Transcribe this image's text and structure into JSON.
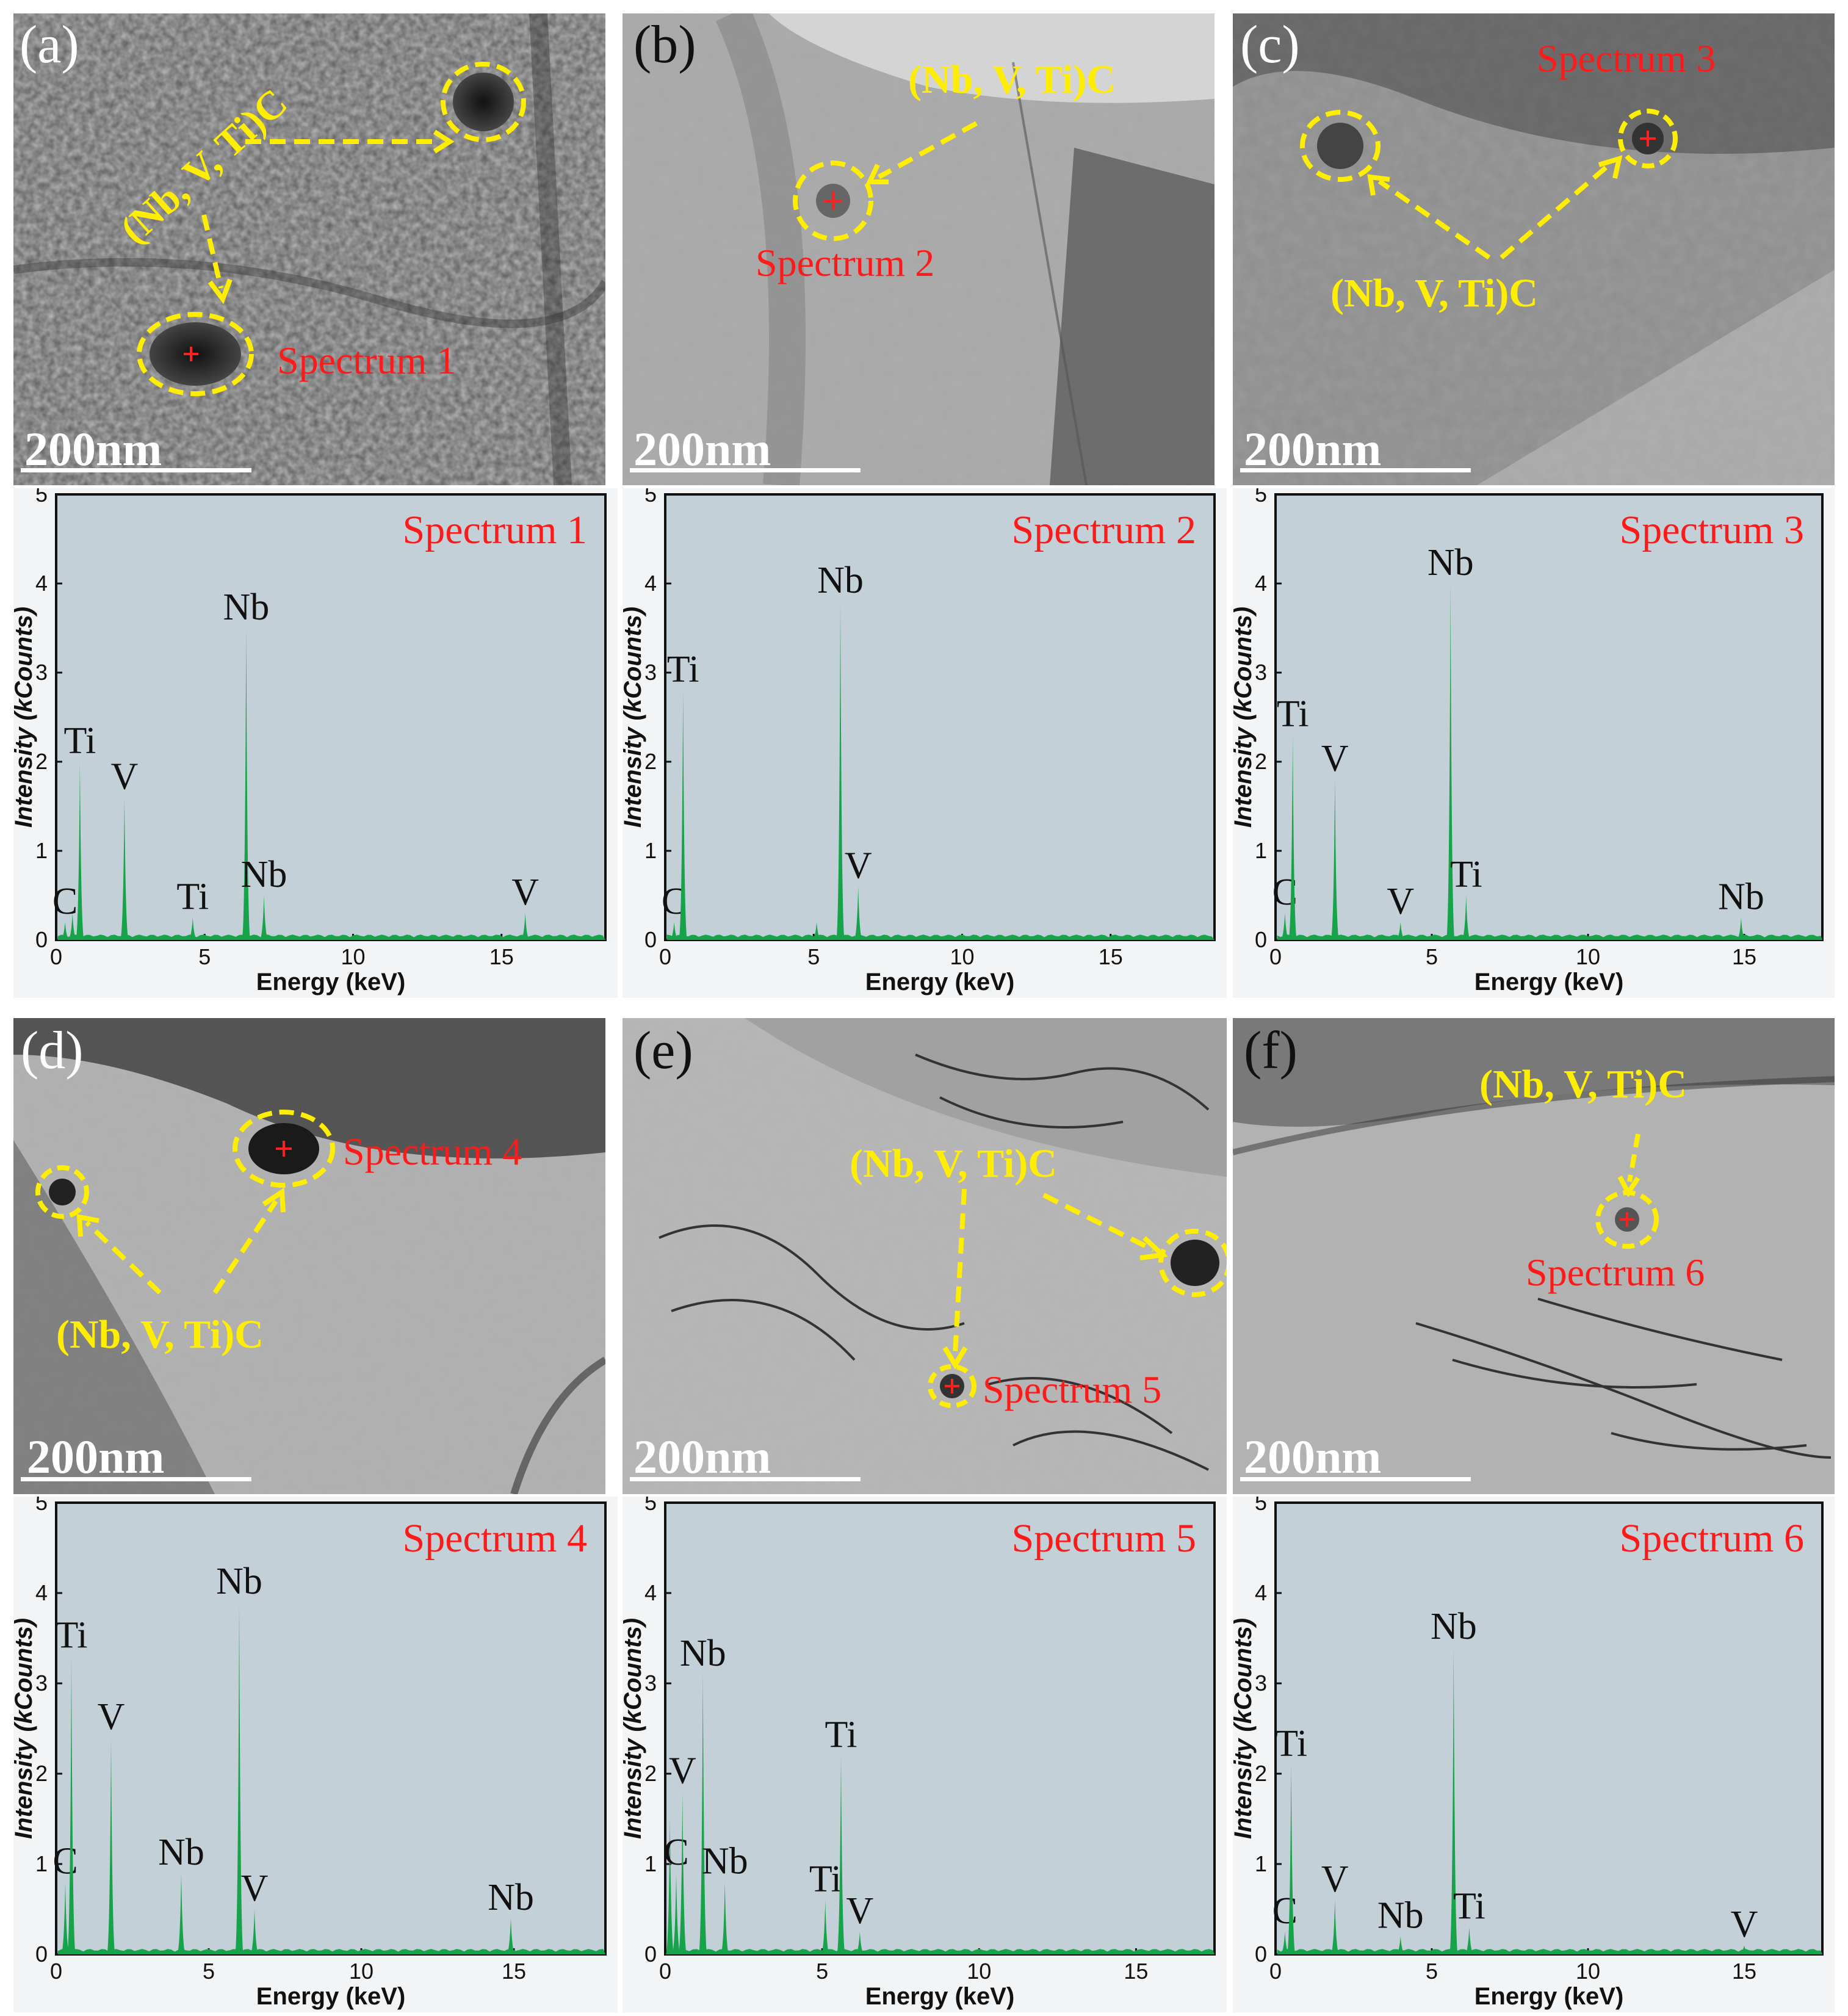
{
  "figure": {
    "panels": [
      {
        "label": "(a)",
        "scale_bar": "200nm",
        "spectrum_label": "Spectrum 1",
        "precipitate_label": "(Nb, V, Ti)C",
        "tone": "dark"
      },
      {
        "label": "(b)",
        "scale_bar": "200nm",
        "spectrum_label": "Spectrum 2",
        "precipitate_label": "(Nb, V, Ti)C",
        "tone": "light"
      },
      {
        "label": "(c)",
        "scale_bar": "200nm",
        "spectrum_label": "Spectrum 3",
        "precipitate_label": "(Nb, V, Ti)C",
        "tone": "mid"
      },
      {
        "label": "(d)",
        "scale_bar": "200nm",
        "spectrum_label": "Spectrum 4",
        "precipitate_label": "(Nb, V, Ti)C",
        "tone": "mid"
      },
      {
        "label": "(e)",
        "scale_bar": "200nm",
        "spectrum_label": "Spectrum 5",
        "precipitate_label": "(Nb, V, Ti)C",
        "tone": "light"
      },
      {
        "label": "(f)",
        "scale_bar": "200nm",
        "spectrum_label": "Spectrum 6",
        "precipitate_label": "(Nb, V, Ti)C",
        "tone": "light"
      }
    ]
  },
  "chart_data": [
    {
      "type": "line",
      "title": "Spectrum 1",
      "xlabel": "Energy (keV)",
      "ylabel": "Intensity (kCounts)",
      "xlim": [
        0,
        18.5
      ],
      "ylim": [
        0,
        5
      ],
      "xticks": [
        0,
        5,
        10,
        15
      ],
      "yticks": [
        0,
        1,
        2,
        3,
        4,
        5
      ],
      "peaks": [
        {
          "x": 0.3,
          "y": 0.2,
          "label": "C"
        },
        {
          "x": 0.55,
          "y": 0.3,
          "label": ""
        },
        {
          "x": 0.8,
          "y": 2.0,
          "label": "Ti"
        },
        {
          "x": 2.3,
          "y": 1.6,
          "label": "V"
        },
        {
          "x": 4.6,
          "y": 0.25,
          "label": "Ti"
        },
        {
          "x": 6.4,
          "y": 3.5,
          "label": "Nb"
        },
        {
          "x": 7.0,
          "y": 0.5,
          "label": "Nb"
        },
        {
          "x": 15.8,
          "y": 0.3,
          "label": "V"
        }
      ]
    },
    {
      "type": "line",
      "title": "Spectrum 2",
      "xlabel": "Energy (keV)",
      "ylabel": "Intensity (kCounts)",
      "xlim": [
        0,
        18.5
      ],
      "ylim": [
        0,
        5
      ],
      "xticks": [
        0,
        5,
        10,
        15
      ],
      "yticks": [
        0,
        1,
        2,
        3,
        4,
        5
      ],
      "peaks": [
        {
          "x": 0.3,
          "y": 0.2,
          "label": "C"
        },
        {
          "x": 0.6,
          "y": 2.8,
          "label": "Ti"
        },
        {
          "x": 5.1,
          "y": 0.2,
          "label": ""
        },
        {
          "x": 5.9,
          "y": 3.8,
          "label": "Nb"
        },
        {
          "x": 6.5,
          "y": 0.6,
          "label": "V"
        }
      ]
    },
    {
      "type": "line",
      "title": "Spectrum 3",
      "xlabel": "Energy (keV)",
      "ylabel": "Intensity (kCounts)",
      "xlim": [
        0,
        17.5
      ],
      "ylim": [
        0,
        5
      ],
      "xticks": [
        0,
        5,
        10,
        15
      ],
      "yticks": [
        0,
        1,
        2,
        3,
        4,
        5
      ],
      "peaks": [
        {
          "x": 0.3,
          "y": 0.3,
          "label": "C"
        },
        {
          "x": 0.55,
          "y": 2.3,
          "label": "Ti"
        },
        {
          "x": 1.9,
          "y": 1.8,
          "label": "V"
        },
        {
          "x": 4.0,
          "y": 0.2,
          "label": "V"
        },
        {
          "x": 5.6,
          "y": 4.0,
          "label": "Nb"
        },
        {
          "x": 6.1,
          "y": 0.5,
          "label": "Ti"
        },
        {
          "x": 14.9,
          "y": 0.25,
          "label": "Nb"
        }
      ]
    },
    {
      "type": "line",
      "title": "Spectrum 4",
      "xlabel": "Energy (keV)",
      "ylabel": "Intensity (kCounts)",
      "xlim": [
        0,
        18
      ],
      "ylim": [
        0,
        5
      ],
      "xticks": [
        0,
        5,
        10,
        15
      ],
      "yticks": [
        0,
        1,
        2,
        3,
        4,
        5
      ],
      "peaks": [
        {
          "x": 0.3,
          "y": 0.8,
          "label": "C"
        },
        {
          "x": 0.5,
          "y": 3.3,
          "label": "Ti"
        },
        {
          "x": 1.8,
          "y": 2.4,
          "label": "V"
        },
        {
          "x": 4.1,
          "y": 0.9,
          "label": "Nb"
        },
        {
          "x": 6.0,
          "y": 3.9,
          "label": "Nb"
        },
        {
          "x": 6.5,
          "y": 0.5,
          "label": "V"
        },
        {
          "x": 14.9,
          "y": 0.4,
          "label": "Nb"
        }
      ]
    },
    {
      "type": "line",
      "title": "Spectrum 5",
      "xlabel": "Energy (keV)",
      "ylabel": "Intensity (kCounts)",
      "xlim": [
        0,
        17.5
      ],
      "ylim": [
        0,
        5
      ],
      "xticks": [
        0,
        5,
        10,
        15
      ],
      "yticks": [
        0,
        1,
        2,
        3,
        4,
        5
      ],
      "peaks": [
        {
          "x": 0.15,
          "y": 1.5,
          "label": ""
        },
        {
          "x": 0.35,
          "y": 0.9,
          "label": "C"
        },
        {
          "x": 0.55,
          "y": 1.8,
          "label": "V"
        },
        {
          "x": 1.2,
          "y": 3.1,
          "label": "Nb"
        },
        {
          "x": 1.9,
          "y": 0.8,
          "label": "Nb"
        },
        {
          "x": 5.1,
          "y": 0.6,
          "label": "Ti"
        },
        {
          "x": 5.6,
          "y": 2.2,
          "label": "Ti"
        },
        {
          "x": 6.2,
          "y": 0.25,
          "label": "V"
        }
      ]
    },
    {
      "type": "line",
      "title": "Spectrum 6",
      "xlabel": "Energy (keV)",
      "ylabel": "Intensity (kCounts)",
      "xlim": [
        0,
        17.5
      ],
      "ylim": [
        0,
        5
      ],
      "xticks": [
        0,
        5,
        10,
        15
      ],
      "yticks": [
        0,
        1,
        2,
        3,
        4,
        5
      ],
      "peaks": [
        {
          "x": 0.3,
          "y": 0.25,
          "label": "C"
        },
        {
          "x": 0.5,
          "y": 2.1,
          "label": "Ti"
        },
        {
          "x": 1.9,
          "y": 0.6,
          "label": "V"
        },
        {
          "x": 4.0,
          "y": 0.2,
          "label": "Nb"
        },
        {
          "x": 5.7,
          "y": 3.4,
          "label": "Nb"
        },
        {
          "x": 6.2,
          "y": 0.3,
          "label": "Ti"
        },
        {
          "x": 15.0,
          "y": 0.1,
          "label": "V"
        }
      ]
    }
  ]
}
